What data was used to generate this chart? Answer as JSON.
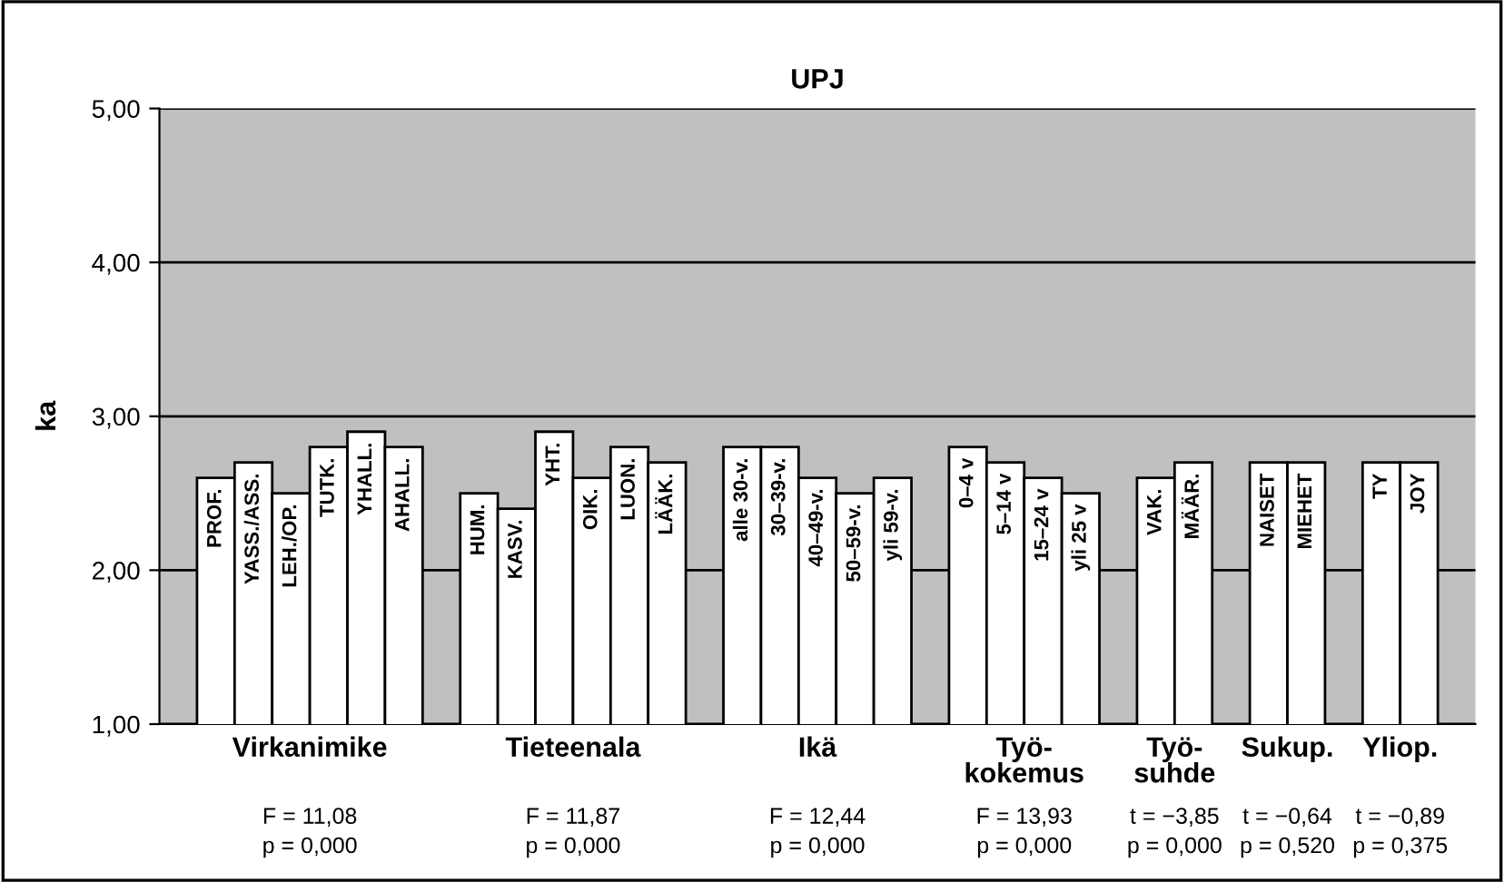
{
  "chart_data": {
    "type": "bar",
    "title": "UPJ",
    "ylabel": "ka",
    "categories": [
      null,
      "PROF.",
      "YASS./ASS.",
      "LEH./OP.",
      "TUTK.",
      "YHALL.",
      "AHALL.",
      null,
      "HUM.",
      "KASV.",
      "YHT.",
      "OIK.",
      "LUON.",
      "LÄÄK.",
      null,
      "alle 30-v.",
      "30–39-v.",
      "40–49-v.",
      "50–59-v.",
      "yli 59-v.",
      null,
      "0–4 v",
      "5–14 v",
      "15–24 v",
      "yli 25 v",
      null,
      "VAK.",
      "MÄÄR.",
      null,
      "NAISET",
      "MIEHET",
      null,
      "TY",
      "JOY",
      null
    ],
    "values": [
      null,
      2.6,
      2.7,
      2.5,
      2.8,
      2.9,
      2.8,
      null,
      2.5,
      2.4,
      2.9,
      2.6,
      2.8,
      2.7,
      null,
      2.8,
      2.8,
      2.6,
      2.5,
      2.6,
      null,
      2.8,
      2.7,
      2.6,
      2.5,
      null,
      2.6,
      2.7,
      null,
      2.7,
      2.7,
      null,
      2.7,
      2.7,
      null
    ],
    "color": "#ffffff",
    "ylim": [
      1,
      5
    ],
    "yticks": [
      {
        "value": 1,
        "label": "1,00"
      },
      {
        "value": 2,
        "label": "2,00"
      },
      {
        "value": 3,
        "label": "3,00"
      },
      {
        "value": 4,
        "label": "4,00"
      },
      {
        "value": 5,
        "label": "5,00"
      }
    ],
    "grid": "y",
    "annotations": [
      "Virkanimike",
      "Tieteenala",
      "Ikä",
      "Työ-\nkokemus",
      "Työ-\nsuhde",
      "Sukup.",
      "Yliop.",
      "F = 11,08\np = 0,000",
      "F = 11,87\np = 0,000",
      "F = 12,44\np = 0,000",
      "F = 13,93\np = 0,000",
      "t = −3,85\np = 0,000",
      "t = −0,64\np = 0,520",
      "t = −0,89\np = 0,375"
    ]
  }
}
